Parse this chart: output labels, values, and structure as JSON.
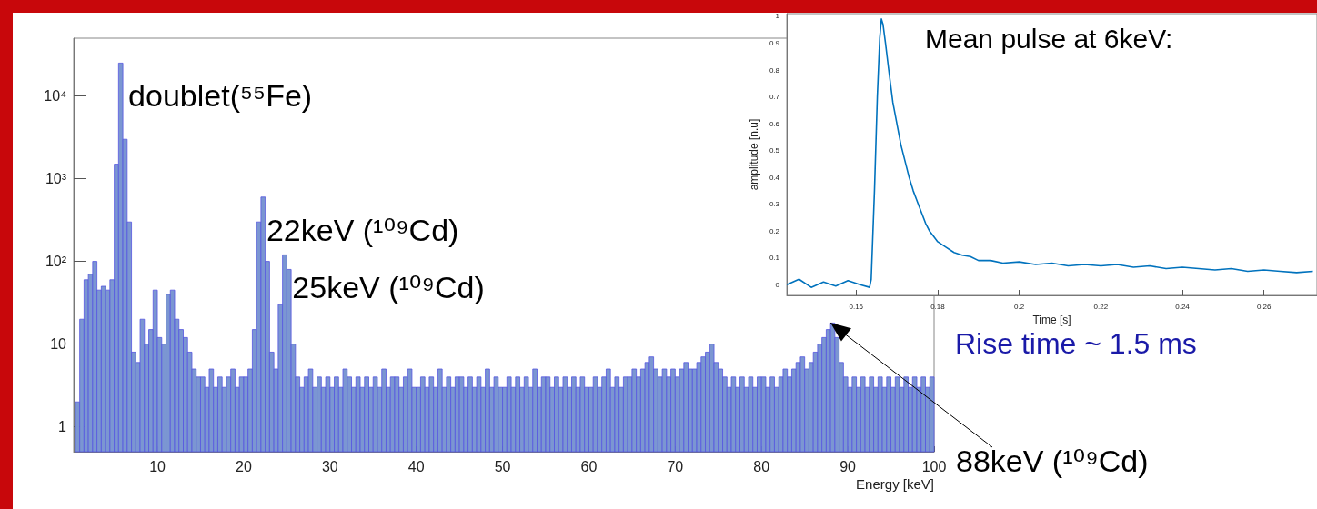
{
  "chart_data": [
    {
      "type": "histogram",
      "xlabel": "Energy [keV]",
      "color": "#7b96d2",
      "log": "y",
      "xlim": [
        0.3,
        100
      ],
      "xticks": [
        10,
        20,
        30,
        40,
        50,
        60,
        70,
        80,
        90,
        100
      ],
      "ylim": [
        0.5,
        50000
      ],
      "yticks": [
        1,
        10,
        {
          "value": 100,
          "label": "10²"
        },
        {
          "value": 1000,
          "label": "10³"
        },
        {
          "value": 10000,
          "label": "10⁴"
        }
      ],
      "bins": [
        0.5,
        1,
        1.5,
        2,
        2.5,
        3,
        3.5,
        4,
        4.5,
        5,
        5.5,
        6,
        6.5,
        7,
        7.5,
        8,
        8.5,
        9,
        9.5,
        10,
        10.5,
        11,
        11.5,
        12,
        12.5,
        13,
        13.5,
        14,
        14.5,
        15,
        15.5,
        16,
        16.5,
        17,
        17.5,
        18,
        18.5,
        19,
        19.5,
        20,
        20.5,
        21,
        21.5,
        22,
        22.5,
        23,
        23.5,
        24,
        24.5,
        25,
        25.5,
        26,
        26.5,
        27,
        27.5,
        28,
        28.5,
        29,
        29.5,
        30,
        30.5,
        31,
        31.5,
        32,
        32.5,
        33,
        33.5,
        34,
        34.5,
        35,
        35.5,
        36,
        36.5,
        37,
        37.5,
        38,
        38.5,
        39,
        39.5,
        40,
        40.5,
        41,
        41.5,
        42,
        42.5,
        43,
        43.5,
        44,
        44.5,
        45,
        45.5,
        46,
        46.5,
        47,
        47.5,
        48,
        48.5,
        49,
        49.5,
        50,
        50.5,
        51,
        51.5,
        52,
        52.5,
        53,
        53.5,
        54,
        54.5,
        55,
        55.5,
        56,
        56.5,
        57,
        57.5,
        58,
        58.5,
        59,
        59.5,
        60,
        60.5,
        61,
        61.5,
        62,
        62.5,
        63,
        63.5,
        64,
        64.5,
        65,
        65.5,
        66,
        66.5,
        67,
        67.5,
        68,
        68.5,
        69,
        69.5,
        70,
        70.5,
        71,
        71.5,
        72,
        72.5,
        73,
        73.5,
        74,
        74.5,
        75,
        75.5,
        76,
        76.5,
        77,
        77.5,
        78,
        78.5,
        79,
        79.5,
        80,
        80.5,
        81,
        81.5,
        82,
        82.5,
        83,
        83.5,
        84,
        84.5,
        85,
        85.5,
        86,
        86.5,
        87,
        87.5,
        88,
        88.5,
        89,
        89.5,
        90,
        90.5,
        91,
        91.5,
        92,
        92.5,
        93,
        93.5,
        94,
        94.5,
        95,
        95.5,
        96,
        96.5,
        97,
        97.5,
        98,
        98.5,
        99,
        99.5,
        100
      ],
      "values": [
        2,
        20,
        60,
        70,
        100,
        45,
        50,
        45,
        60,
        1500,
        25000,
        3000,
        300,
        8,
        6,
        20,
        10,
        15,
        45,
        12,
        10,
        40,
        45,
        20,
        15,
        12,
        8,
        5,
        4,
        4,
        3,
        5,
        3,
        4,
        3,
        4,
        5,
        3,
        4,
        4,
        5,
        15,
        300,
        600,
        100,
        8,
        5,
        30,
        120,
        80,
        10,
        4,
        3,
        4,
        5,
        3,
        4,
        3,
        4,
        3,
        4,
        3,
        5,
        4,
        3,
        4,
        3,
        4,
        3,
        4,
        3,
        5,
        3,
        4,
        4,
        3,
        4,
        5,
        3,
        3,
        4,
        3,
        4,
        3,
        5,
        3,
        4,
        3,
        4,
        4,
        3,
        4,
        3,
        4,
        3,
        5,
        3,
        4,
        3,
        3,
        4,
        3,
        4,
        3,
        4,
        3,
        5,
        3,
        4,
        4,
        3,
        4,
        3,
        4,
        3,
        4,
        3,
        4,
        3,
        3,
        4,
        3,
        4,
        5,
        3,
        4,
        3,
        4,
        4,
        5,
        4,
        5,
        6,
        7,
        5,
        4,
        5,
        4,
        5,
        4,
        5,
        6,
        5,
        5,
        6,
        7,
        8,
        10,
        6,
        5,
        4,
        3,
        4,
        3,
        4,
        3,
        4,
        3,
        4,
        4,
        3,
        4,
        3,
        4,
        5,
        4,
        5,
        6,
        7,
        5,
        6,
        8,
        10,
        12,
        15,
        18,
        12,
        6,
        4,
        3,
        4,
        3,
        4,
        3,
        4,
        3,
        4,
        3,
        4,
        3,
        4,
        3,
        4,
        3,
        4,
        3,
        4,
        3,
        4
      ],
      "annotations": [
        {
          "text": "doublet(⁵⁵Fe)",
          "x": 6,
          "y": 25000
        },
        {
          "text": "22keV (¹⁰⁹Cd)",
          "x": 22,
          "y": 600
        },
        {
          "text": "25keV (¹⁰⁹Cd)",
          "x": 25,
          "y": 120
        },
        {
          "text": "88keV (¹⁰⁹Cd)",
          "x": 88,
          "y": 18
        }
      ]
    },
    {
      "type": "line",
      "title": "Mean pulse at 6keV:",
      "xlabel": "Time [s]",
      "ylabel": "amplitude [n.u]",
      "color": "#0072bd",
      "xlim": [
        0.143,
        0.273
      ],
      "xticks": [
        0.16,
        0.18,
        0.2,
        0.22,
        0.24,
        0.26
      ],
      "ylim": [
        -0.04,
        1.01
      ],
      "yticks": [
        0,
        0.1,
        0.2,
        0.3,
        0.4,
        0.5,
        0.6,
        0.7,
        0.8,
        0.9,
        1
      ],
      "x": [
        0.143,
        0.146,
        0.149,
        0.152,
        0.155,
        0.158,
        0.161,
        0.1633,
        0.1637,
        0.1645,
        0.1652,
        0.1658,
        0.1662,
        0.1666,
        0.1672,
        0.168,
        0.169,
        0.17,
        0.171,
        0.172,
        0.173,
        0.174,
        0.175,
        0.176,
        0.177,
        0.178,
        0.179,
        0.18,
        0.182,
        0.184,
        0.186,
        0.188,
        0.19,
        0.193,
        0.196,
        0.2,
        0.204,
        0.208,
        0.212,
        0.216,
        0.22,
        0.224,
        0.228,
        0.232,
        0.236,
        0.24,
        0.244,
        0.248,
        0.252,
        0.256,
        0.26,
        0.264,
        0.268,
        0.272
      ],
      "values": [
        0,
        0.02,
        -0.01,
        0.01,
        -0.005,
        0.015,
        0,
        -0.01,
        0.02,
        0.35,
        0.7,
        0.92,
        0.99,
        0.97,
        0.9,
        0.8,
        0.68,
        0.6,
        0.52,
        0.46,
        0.4,
        0.35,
        0.31,
        0.27,
        0.23,
        0.2,
        0.18,
        0.16,
        0.14,
        0.12,
        0.11,
        0.105,
        0.09,
        0.09,
        0.08,
        0.085,
        0.075,
        0.08,
        0.07,
        0.075,
        0.07,
        0.075,
        0.065,
        0.07,
        0.06,
        0.065,
        0.06,
        0.055,
        0.06,
        0.05,
        0.055,
        0.05,
        0.045,
        0.05
      ],
      "annotations": [
        "Rise time ~ 1.5 ms"
      ]
    }
  ]
}
